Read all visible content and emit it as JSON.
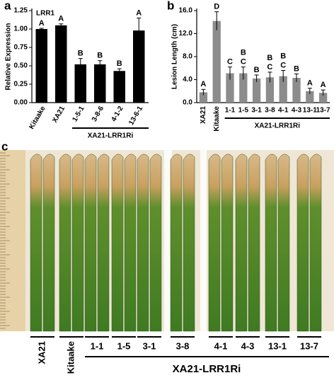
{
  "chart_data": [
    {
      "type": "bar",
      "panel": "a",
      "title": "LRR1",
      "ylabel": "Relative Expression",
      "categories": [
        "Kitaake",
        "XA21",
        "1-5-1",
        "3-8-6",
        "4-1-2",
        "13-6-1"
      ],
      "values": [
        1.0,
        1.05,
        0.52,
        0.52,
        0.43,
        0.98
      ],
      "errors": [
        0.01,
        0.02,
        0.08,
        0.05,
        0.03,
        0.17
      ],
      "letters": [
        [
          "A"
        ],
        [
          "A"
        ],
        [
          "B"
        ],
        [
          "B"
        ],
        [
          "B"
        ],
        [
          "A"
        ]
      ],
      "color": "#000000",
      "group_label": "XA21-LRR1Ri",
      "ylim": [
        0,
        1.25
      ],
      "yticks": [
        {
          "value": 0,
          "label": "0.00"
        },
        {
          "value": 0.25,
          "label": "0.25"
        },
        {
          "value": 0.5,
          "label": "0.50"
        },
        {
          "value": 0.75,
          "label": "0.75"
        },
        {
          "value": 1,
          "label": "1.00"
        },
        {
          "value": 1.25,
          "label": "1.25"
        }
      ]
    },
    {
      "type": "bar",
      "panel": "b",
      "ylabel": "Lesion Length (cm)",
      "categories": [
        "XA21",
        "Kitaake",
        "1-1",
        "1-5",
        "3-1",
        "3-8",
        "4-1",
        "4-3",
        "13-1",
        "13-7"
      ],
      "values": [
        1.8,
        14.2,
        5.1,
        5.1,
        4.2,
        4.4,
        4.6,
        4.3,
        2.0,
        1.7
      ],
      "errors": [
        0.5,
        1.6,
        1.1,
        1.1,
        0.6,
        0.9,
        1.0,
        0.7,
        0.5,
        0.5
      ],
      "letters": [
        [
          "A"
        ],
        [
          "D"
        ],
        [
          "C"
        ],
        [
          "B",
          "C"
        ],
        [
          "B"
        ],
        [
          "B",
          "C"
        ],
        [
          "B",
          "C"
        ],
        [
          "B"
        ],
        [
          "A"
        ],
        [
          "A"
        ]
      ],
      "color": "#8c8c8c",
      "group_label": "XA21-LRR1Ri",
      "ylim": [
        0,
        16
      ],
      "yticks": [
        {
          "value": 0,
          "label": "0.0"
        },
        {
          "value": 4,
          "label": "4.0"
        },
        {
          "value": 8,
          "label": "8.0"
        },
        {
          "value": 12,
          "label": "12.0"
        },
        {
          "value": 16,
          "label": "16.0"
        }
      ]
    }
  ],
  "photo": {
    "panel": "c",
    "labels": [
      "XA21",
      "Kitaake",
      "1-1",
      "1-5",
      "3-1",
      "3-8",
      "4-1",
      "4-3",
      "13-1",
      "13-7"
    ],
    "group_label": "XA21-LRR1Ri"
  }
}
